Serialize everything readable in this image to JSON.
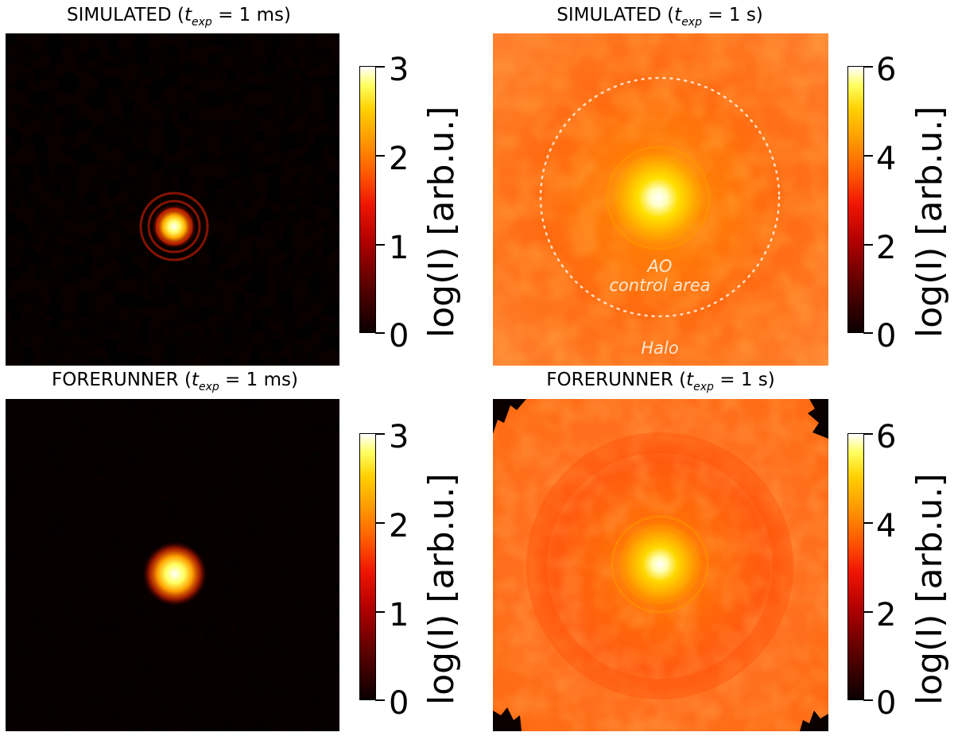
{
  "panels": [
    {
      "title_prefix": "SIMULATED (",
      "t": "t",
      "sub": "exp",
      "title_suffix": " = 1 ms)",
      "colorbar": {
        "ticks": [
          "3",
          "2",
          "1",
          "0"
        ],
        "label": "log(I) [arb.u.]",
        "range": [
          0,
          3
        ]
      }
    },
    {
      "title_prefix": "SIMULATED (",
      "t": "t",
      "sub": "exp",
      "title_suffix": " = 1 s)",
      "colorbar": {
        "ticks": [
          "6",
          "4",
          "2",
          "0"
        ],
        "label": "log(I) [arb.u.]",
        "range": [
          0,
          6
        ]
      },
      "annotations": {
        "control_area_line1": "AO",
        "control_area_line2": "control area",
        "halo": "Halo"
      }
    },
    {
      "title_prefix": "FORERUNNER (",
      "t": "t",
      "sub": "exp",
      "title_suffix": " = 1 ms)",
      "colorbar": {
        "ticks": [
          "3",
          "2",
          "1",
          "0"
        ],
        "label": "log(I) [arb.u.]",
        "range": [
          0,
          3
        ]
      }
    },
    {
      "title_prefix": "FORERUNNER (",
      "t": "t",
      "sub": "exp",
      "title_suffix": " = 1 s)",
      "colorbar": {
        "ticks": [
          "6",
          "4",
          "2",
          "0"
        ],
        "label": "log(I) [arb.u.]",
        "range": [
          0,
          6
        ]
      }
    }
  ],
  "colormap": "hot",
  "colors": {
    "background_dark": "#0b0000",
    "halo_orange": "#ff6a00",
    "core_white": "#ffffff"
  }
}
